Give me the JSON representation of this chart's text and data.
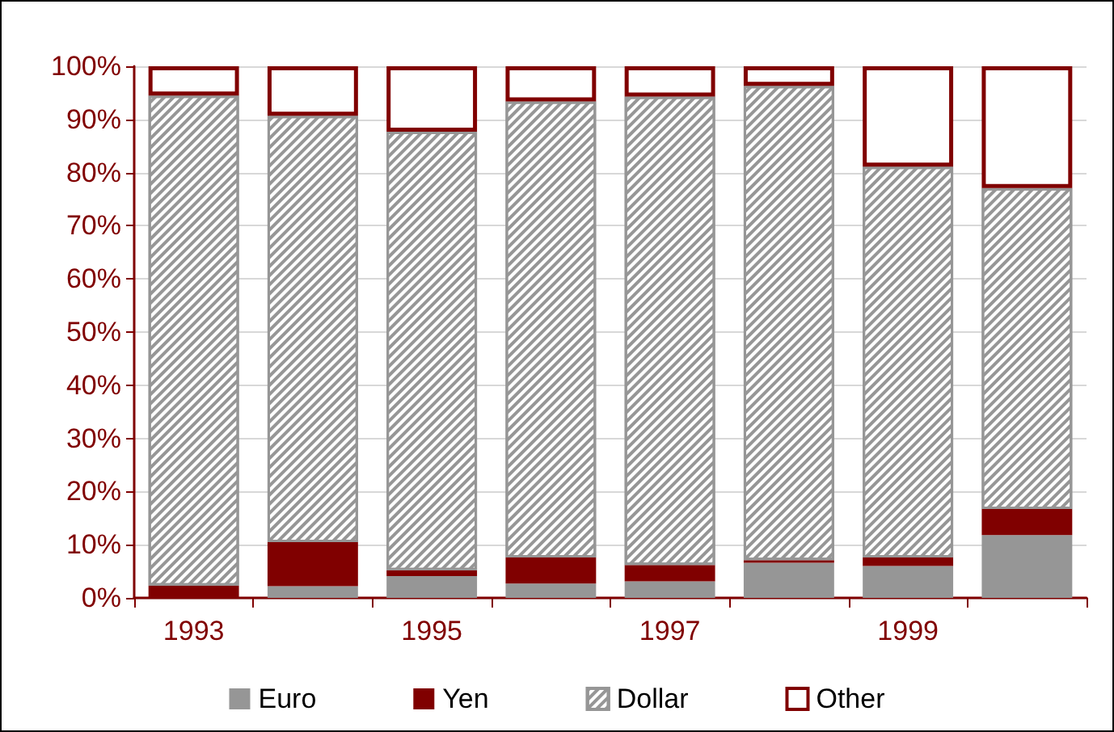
{
  "chart_data": {
    "type": "bar",
    "stacked": true,
    "categories": [
      "1993",
      null,
      "1995",
      null,
      "1997",
      null,
      "1999",
      null
    ],
    "series": [
      {
        "name": "Euro",
        "color": "#969696",
        "values": [
          0,
          2.2,
          4.1,
          2.7,
          3.1,
          6.6,
          6.0,
          11.8
        ]
      },
      {
        "name": "Yen",
        "color": "#800000",
        "values": [
          2.3,
          8.3,
          1.1,
          4.9,
          3.1,
          0.5,
          1.6,
          4.9
        ]
      },
      {
        "name": "Dollar",
        "color": "#969696",
        "values": [
          92.2,
          80.2,
          82.5,
          85.8,
          88.1,
          89.2,
          73.5,
          60.4
        ]
      },
      {
        "name": "Other",
        "color": "#800000",
        "values": [
          5.5,
          9.3,
          12.3,
          6.6,
          5.7,
          3.7,
          18.9,
          22.9
        ]
      }
    ],
    "ylim": [
      0,
      100
    ],
    "yticks": [
      {
        "value": 0,
        "label": "0%"
      },
      {
        "value": 10,
        "label": "10%"
      },
      {
        "value": 20,
        "label": "20%"
      },
      {
        "value": 30,
        "label": "30%"
      },
      {
        "value": 40,
        "label": "40%"
      },
      {
        "value": 50,
        "label": "50%"
      },
      {
        "value": 60,
        "label": "60%"
      },
      {
        "value": 70,
        "label": "70%"
      },
      {
        "value": 80,
        "label": "80%"
      },
      {
        "value": 90,
        "label": "90%"
      },
      {
        "value": 100,
        "label": "100%"
      }
    ],
    "grid": "y",
    "legend": "bottom"
  }
}
